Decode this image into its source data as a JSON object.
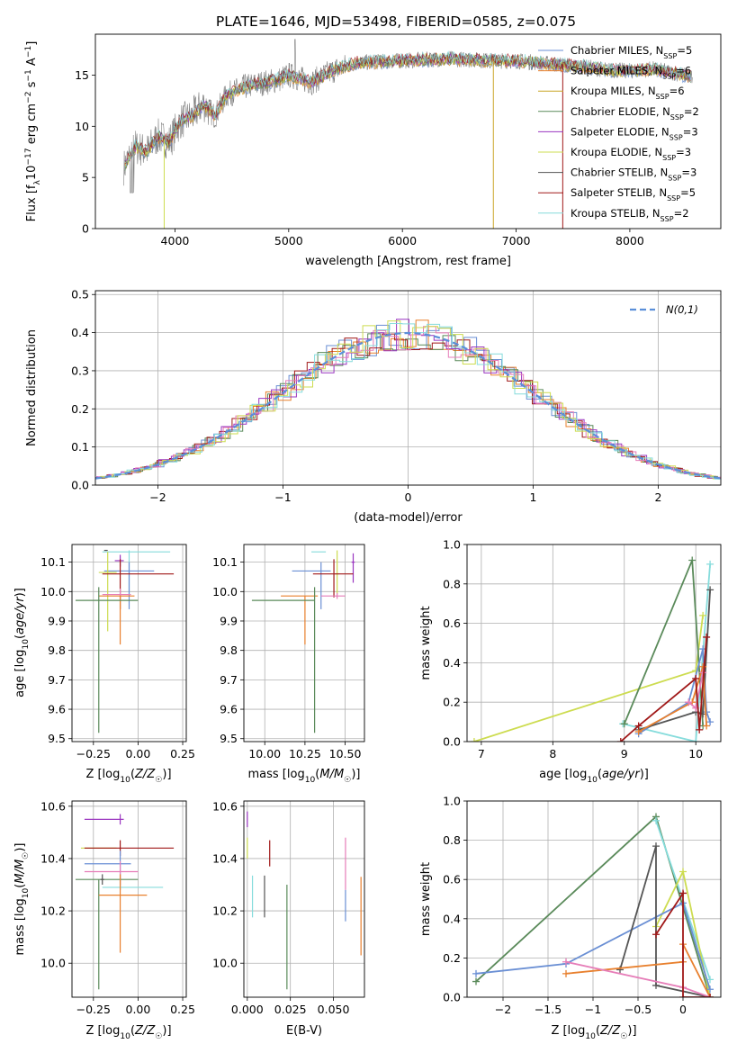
{
  "title": "PLATE=1646, MJD=53498, FIBERID=0585, z=0.075",
  "colors": {
    "blue": "#6a8fd4",
    "orange": "#e8802e",
    "olive": "#c9a626",
    "green": "#5a8a5a",
    "purple": "#9a35c0",
    "yellowgreen": "#cddc50",
    "darkgray": "#555555",
    "darkred": "#a01818",
    "cyan": "#86dcdc",
    "pink": "#e67db8",
    "gray": "#808080"
  },
  "chart_data": [
    {
      "id": "spectrum",
      "type": "line",
      "xlabel": "wavelength [Angstrom, rest frame]",
      "ylabel": "Flux [f_λ 10^-17 erg cm^-2 s^-1 A^-1]",
      "xlim": [
        3300,
        8800
      ],
      "ylim": [
        0,
        19
      ],
      "xticks": [
        4000,
        5000,
        6000,
        7000,
        8000
      ],
      "yticks": [
        0,
        5,
        10,
        15
      ],
      "grid": false,
      "legend_position": "top-right",
      "continuum": [
        [
          3550,
          6.0
        ],
        [
          3650,
          8.0
        ],
        [
          3750,
          7.5
        ],
        [
          3850,
          9.0
        ],
        [
          3950,
          8.5
        ],
        [
          4050,
          10.5
        ],
        [
          4150,
          11.0
        ],
        [
          4250,
          12.2
        ],
        [
          4350,
          11.0
        ],
        [
          4450,
          13.0
        ],
        [
          4600,
          13.8
        ],
        [
          4750,
          14.2
        ],
        [
          4900,
          14.5
        ],
        [
          5000,
          15.0
        ],
        [
          5200,
          14.3
        ],
        [
          5400,
          15.5
        ],
        [
          5600,
          16.2
        ],
        [
          5800,
          16.3
        ],
        [
          6000,
          16.4
        ],
        [
          6200,
          16.5
        ],
        [
          6400,
          16.6
        ],
        [
          6600,
          16.5
        ],
        [
          6800,
          16.4
        ],
        [
          7000,
          16.4
        ],
        [
          7200,
          16.2
        ],
        [
          7400,
          16.0
        ],
        [
          7600,
          15.8
        ],
        [
          7800,
          15.5
        ],
        [
          8000,
          15.4
        ],
        [
          8200,
          15.6
        ],
        [
          8400,
          15.2
        ],
        [
          8550,
          14.8
        ]
      ],
      "series": [
        {
          "name": "Chabrier MILES, N",
          "sub": "SSP",
          "suffix": "=5",
          "color": "#6a8fd4"
        },
        {
          "name": "Salpeter MILES, N",
          "sub": "SSP",
          "suffix": "=6",
          "color": "#e8802e"
        },
        {
          "name": "Kroupa MILES, N",
          "sub": "SSP",
          "suffix": "=6",
          "color": "#c9a626"
        },
        {
          "name": "Chabrier ELODIE, N",
          "sub": "SSP",
          "suffix": "=2",
          "color": "#5a8a5a"
        },
        {
          "name": "Salpeter ELODIE, N",
          "sub": "SSP",
          "suffix": "=3",
          "color": "#9a35c0"
        },
        {
          "name": "Kroupa ELODIE, N",
          "sub": "SSP",
          "suffix": "=3",
          "color": "#cddc50"
        },
        {
          "name": "Chabrier STELIB, N",
          "sub": "SSP",
          "suffix": "=3",
          "color": "#555555"
        },
        {
          "name": "Salpeter STELIB, N",
          "sub": "SSP",
          "suffix": "=5",
          "color": "#a01818"
        },
        {
          "name": "Kroupa STELIB, N",
          "sub": "SSP",
          "suffix": "=2",
          "color": "#86dcdc"
        }
      ]
    },
    {
      "id": "residuals",
      "type": "line",
      "xlabel": "(data-model)/error",
      "ylabel": "Normed distribution",
      "xlim": [
        -2.5,
        2.5
      ],
      "ylim": [
        0,
        0.51
      ],
      "xticks": [
        -2,
        -1,
        0,
        1,
        2
      ],
      "yticks": [
        0.0,
        0.1,
        0.2,
        0.3,
        0.4,
        0.5
      ],
      "grid": true,
      "legend_position": "top-right",
      "legend_label": "N(0,1)",
      "bin_width": 0.1
    },
    {
      "id": "age_vs_Z",
      "type": "scatter",
      "xlabel": "Z [log10(Z/Z☉)]",
      "ylabel": "age  [log10(age/yr)]",
      "xlim": [
        -0.37,
        0.27
      ],
      "ylim": [
        9.49,
        10.16
      ],
      "xticks": [
        -0.25,
        0.0,
        0.25
      ],
      "yticks": [
        9.5,
        9.6,
        9.7,
        9.8,
        9.9,
        10.0,
        10.1
      ],
      "grid": true,
      "errorbars": [
        {
          "color": "#86dcdc",
          "x": -0.05,
          "xerr": [
            0.15,
            0.23
          ],
          "y": 10.135,
          "yerr": [
            0.15,
            0.005
          ]
        },
        {
          "color": "#555555",
          "x": -0.18,
          "xerr": [
            0.01,
            0.01
          ],
          "y": 10.14,
          "yerr": [
            0.0,
            0.0
          ]
        },
        {
          "color": "#9a35c0",
          "x": -0.1,
          "xerr": [
            0.03,
            0.02
          ],
          "y": 10.105,
          "yerr": [
            0.02,
            0.02
          ]
        },
        {
          "color": "#6a8fd4",
          "x": -0.05,
          "xerr": [
            0.14,
            0.14
          ],
          "y": 10.07,
          "yerr": [
            0.13,
            0.03
          ]
        },
        {
          "color": "#cddc50",
          "x": -0.17,
          "xerr": [
            0.05,
            0.05
          ],
          "y": 10.065,
          "yerr": [
            0.2,
            0.07
          ]
        },
        {
          "color": "#a01818",
          "x": -0.1,
          "xerr": [
            0.1,
            0.3
          ],
          "y": 10.06,
          "yerr": [
            0.12,
            0.05
          ]
        },
        {
          "color": "#e67db8",
          "x": -0.1,
          "xerr": [
            0.1,
            0.06
          ],
          "y": 9.99,
          "yerr": [
            0.02,
            0.02
          ]
        },
        {
          "color": "#e8802e",
          "x": -0.1,
          "xerr": [
            0.12,
            0.08
          ],
          "y": 9.985,
          "yerr": [
            0.165,
            0.0
          ]
        },
        {
          "color": "#5a8a5a",
          "x": -0.22,
          "xerr": [
            0.13,
            0.22
          ],
          "y": 9.97,
          "yerr": [
            0.45,
            0.045
          ]
        }
      ]
    },
    {
      "id": "age_vs_mass",
      "type": "scatter",
      "xlabel": "mass [log10(M/M☉)]",
      "ylabel": "",
      "xlim": [
        9.87,
        10.62
      ],
      "ylim": [
        9.49,
        10.16
      ],
      "xticks": [
        10.0,
        10.25,
        10.5
      ],
      "yticks": [
        9.5,
        9.6,
        9.7,
        9.8,
        9.9,
        10.0,
        10.1
      ],
      "grid": true,
      "errorbars": [
        {
          "color": "#86dcdc",
          "x": 10.34,
          "xerr": [
            0.05,
            0.04
          ],
          "y": 10.135,
          "yerr": [
            0.0,
            0.0
          ]
        },
        {
          "color": "#cddc50",
          "x": 10.45,
          "xerr": [
            0.01,
            0.01
          ],
          "y": 10.06,
          "yerr": [
            0.07,
            0.08
          ]
        },
        {
          "color": "#9a35c0",
          "x": 10.55,
          "xerr": [
            0.01,
            0.01
          ],
          "y": 10.1,
          "yerr": [
            0.07,
            0.03
          ]
        },
        {
          "color": "#6a8fd4",
          "x": 10.35,
          "xerr": [
            0.18,
            0.06
          ],
          "y": 10.07,
          "yerr": [
            0.13,
            0.03
          ]
        },
        {
          "color": "#a01818",
          "x": 10.43,
          "xerr": [
            0.13,
            0.12
          ],
          "y": 10.06,
          "yerr": [
            0.08,
            0.05
          ]
        },
        {
          "color": "#e67db8",
          "x": 10.45,
          "xerr": [
            0.1,
            0.05
          ],
          "y": 9.985,
          "yerr": [
            0.01,
            0.01
          ]
        },
        {
          "color": "#e8802e",
          "x": 10.25,
          "xerr": [
            0.15,
            0.08
          ],
          "y": 9.985,
          "yerr": [
            0.165,
            0.0
          ]
        },
        {
          "color": "#5a8a5a",
          "x": 10.31,
          "xerr": [
            0.39,
            0.0
          ],
          "y": 9.97,
          "yerr": [
            0.45,
            0.045
          ]
        }
      ]
    },
    {
      "id": "massweight_vs_age",
      "type": "line",
      "xlabel": "age  [log10(age/yr)]",
      "ylabel": "mass weight",
      "xlim": [
        6.8,
        10.35
      ],
      "ylim": [
        0,
        1
      ],
      "xticks": [
        7,
        8,
        9,
        10
      ],
      "yticks": [
        0.0,
        0.2,
        0.4,
        0.6,
        0.8,
        1.0
      ],
      "grid": true,
      "series": [
        {
          "color": "#86dcdc",
          "x": [
            8.98,
            10.0,
            10.2
          ],
          "y": [
            0.09,
            0.0,
            0.9
          ]
        },
        {
          "color": "#cddc50",
          "x": [
            6.9,
            10.0,
            10.1
          ],
          "y": [
            0.0,
            0.36,
            0.64
          ]
        },
        {
          "color": "#5a8a5a",
          "x": [
            9.0,
            9.95,
            10.1
          ],
          "y": [
            0.09,
            0.92,
            0.08
          ]
        },
        {
          "color": "#6a8fd4",
          "x": [
            9.2,
            9.9,
            10.1,
            10.15,
            10.2
          ],
          "y": [
            0.04,
            0.2,
            0.47,
            0.15,
            0.1
          ]
        },
        {
          "color": "#555555",
          "x": [
            9.2,
            10.0,
            10.1,
            10.2
          ],
          "y": [
            0.06,
            0.15,
            0.14,
            0.77
          ]
        },
        {
          "color": "#e8802e",
          "x": [
            9.2,
            9.95,
            10.1,
            10.15
          ],
          "y": [
            0.05,
            0.2,
            0.38,
            0.08
          ]
        },
        {
          "color": "#e67db8",
          "x": [
            9.9,
            10.0,
            10.1
          ],
          "y": [
            0.2,
            0.17,
            0.35
          ]
        },
        {
          "color": "#a01818",
          "x": [
            8.95,
            9.2,
            10.0,
            10.05,
            10.15
          ],
          "y": [
            0.0,
            0.08,
            0.32,
            0.06,
            0.53
          ]
        }
      ]
    },
    {
      "id": "mass_vs_Z",
      "type": "scatter",
      "xlabel": "Z [log10(Z/Z☉)]",
      "ylabel": "mass [log10(M/M☉)]",
      "xlim": [
        -0.37,
        0.27
      ],
      "ylim": [
        9.87,
        10.62
      ],
      "xticks": [
        -0.25,
        0.0,
        0.25
      ],
      "yticks": [
        10.0,
        10.2,
        10.4,
        10.6
      ],
      "grid": true,
      "errorbars": [
        {
          "color": "#9a35c0",
          "x": -0.1,
          "xerr": [
            0.2,
            0.02
          ],
          "y": 10.55,
          "yerr": [
            0.02,
            0.02
          ]
        },
        {
          "color": "#cddc50",
          "x": -0.22,
          "xerr": [
            0.1,
            0.1
          ],
          "y": 10.44,
          "yerr": [
            0.0,
            0.0
          ]
        },
        {
          "color": "#a01818",
          "x": -0.1,
          "xerr": [
            0.2,
            0.3
          ],
          "y": 10.44,
          "yerr": [
            0.03,
            0.03
          ]
        },
        {
          "color": "#6a8fd4",
          "x": -0.1,
          "xerr": [
            0.2,
            0.06
          ],
          "y": 10.38,
          "yerr": [
            0.1,
            0.05
          ]
        },
        {
          "color": "#e67db8",
          "x": -0.1,
          "xerr": [
            0.2,
            0.1
          ],
          "y": 10.35,
          "yerr": [
            0.05,
            0.04
          ]
        },
        {
          "color": "#5a8a5a",
          "x": -0.22,
          "xerr": [
            0.13,
            0.22
          ],
          "y": 10.32,
          "yerr": [
            0.42,
            0.0
          ]
        },
        {
          "color": "#86dcdc",
          "x": -0.1,
          "xerr": [
            0.1,
            0.24
          ],
          "y": 10.29,
          "yerr": [
            0.0,
            0.0
          ]
        },
        {
          "color": "#555555",
          "x": -0.2,
          "xerr": [
            0.01,
            0.01
          ],
          "y": 10.32,
          "yerr": [
            0.02,
            0.02
          ]
        },
        {
          "color": "#e8802e",
          "x": -0.1,
          "xerr": [
            0.12,
            0.15
          ],
          "y": 10.26,
          "yerr": [
            0.22,
            0.08
          ]
        }
      ]
    },
    {
      "id": "mass_vs_ebv",
      "type": "scatter",
      "xlabel": "E(B-V)",
      "ylabel": "",
      "xlim": [
        -0.002,
        0.068
      ],
      "ylim": [
        9.87,
        10.62
      ],
      "xticks": [
        0.0,
        0.025,
        0.05
      ],
      "xticklabels": [
        "0.000",
        "0.025",
        "0.050"
      ],
      "yticks": [
        10.0,
        10.2,
        10.4,
        10.6
      ],
      "grid": true,
      "errorbars": [
        {
          "color": "#9a35c0",
          "x": 0.0,
          "xerr": [
            0.0,
            0.0
          ],
          "y": 10.55,
          "yerr": [
            0.03,
            0.03
          ]
        },
        {
          "color": "#cddc50",
          "x": 0.0,
          "xerr": [
            0.0,
            0.0
          ],
          "y": 10.44,
          "yerr": [
            0.04,
            0.04
          ]
        },
        {
          "color": "#86dcdc",
          "x": 0.003,
          "xerr": [
            0.0,
            0.0
          ],
          "y": 10.255,
          "yerr": [
            0.08,
            0.08
          ]
        },
        {
          "color": "#555555",
          "x": 0.01,
          "xerr": [
            0.0,
            0.0
          ],
          "y": 10.255,
          "yerr": [
            0.08,
            0.08
          ]
        },
        {
          "color": "#a01818",
          "x": 0.013,
          "xerr": [
            0.0,
            0.0
          ],
          "y": 10.42,
          "yerr": [
            0.05,
            0.05
          ]
        },
        {
          "color": "#5a8a5a",
          "x": 0.023,
          "xerr": [
            0.0,
            0.0
          ],
          "y": 10.1,
          "yerr": [
            0.2,
            0.2
          ]
        },
        {
          "color": "#e67db8",
          "x": 0.057,
          "xerr": [
            0.0,
            0.0
          ],
          "y": 10.38,
          "yerr": [
            0.1,
            0.1
          ]
        },
        {
          "color": "#6a8fd4",
          "x": 0.057,
          "xerr": [
            0.0,
            0.0
          ],
          "y": 10.22,
          "yerr": [
            0.06,
            0.06
          ]
        },
        {
          "color": "#e8802e",
          "x": 0.066,
          "xerr": [
            0.0,
            0.0
          ],
          "y": 10.18,
          "yerr": [
            0.15,
            0.15
          ]
        }
      ]
    },
    {
      "id": "massweight_vs_Z",
      "type": "line",
      "xlabel": "Z [log10(Z/Z☉)]",
      "ylabel": "mass weight",
      "xlim": [
        -2.4,
        0.42
      ],
      "ylim": [
        0,
        1
      ],
      "xticks": [
        -2.0,
        -1.5,
        -1.0,
        -0.5,
        0.0
      ],
      "yticks": [
        0.0,
        0.2,
        0.4,
        0.6,
        0.8,
        1.0
      ],
      "grid": true,
      "series": [
        {
          "color": "#5a8a5a",
          "x": [
            -2.3,
            -0.3,
            0.3
          ],
          "y": [
            0.08,
            0.92,
            0.0
          ]
        },
        {
          "color": "#86dcdc",
          "x": [
            -0.3,
            0.3
          ],
          "y": [
            0.9,
            0.09
          ]
        },
        {
          "color": "#cddc50",
          "x": [
            -0.3,
            0.0,
            0.3
          ],
          "y": [
            0.36,
            0.64,
            0.0
          ]
        },
        {
          "color": "#6a8fd4",
          "x": [
            -2.3,
            -1.3,
            0.0,
            0.3
          ],
          "y": [
            0.12,
            0.17,
            0.48,
            0.04
          ]
        },
        {
          "color": "#555555",
          "x": [
            -0.7,
            -0.3,
            -0.3,
            0.3
          ],
          "y": [
            0.14,
            0.77,
            0.06,
            0.0
          ]
        },
        {
          "color": "#e8802e",
          "x": [
            -1.3,
            0.0,
            0.0,
            0.3
          ],
          "y": [
            0.12,
            0.18,
            0.27,
            0.0
          ]
        },
        {
          "color": "#e67db8",
          "x": [
            -1.3,
            0.0,
            0.3
          ],
          "y": [
            0.18,
            0.05,
            0.0
          ]
        },
        {
          "color": "#a01818",
          "x": [
            -0.3,
            0.0,
            0.0,
            0.3
          ],
          "y": [
            0.32,
            0.53,
            0.0,
            0.0
          ]
        }
      ]
    }
  ]
}
